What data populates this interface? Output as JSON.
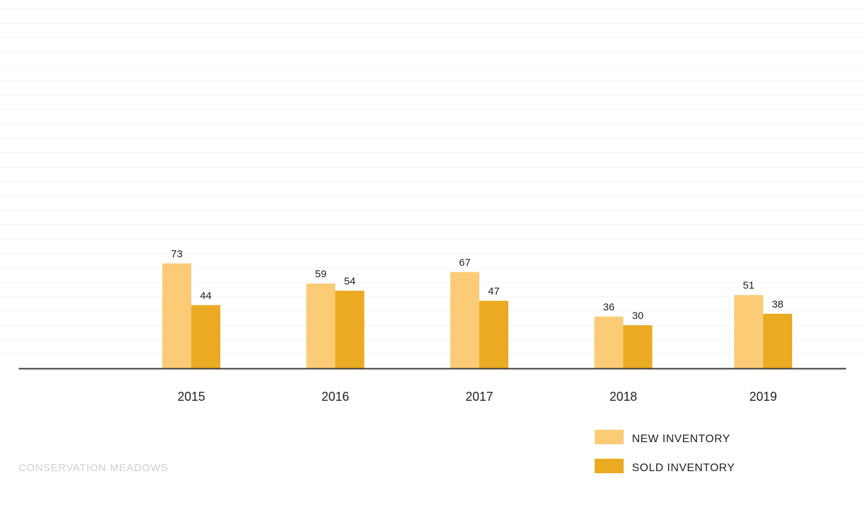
{
  "footer": {
    "label": "CONSERVATION MEADOWS"
  },
  "colors": {
    "new_inventory": "#fccb76",
    "sold_inventory": "#eaab22",
    "axis": "#3a3a3a",
    "grid": "#f4f4f4"
  },
  "chart_data": {
    "type": "bar",
    "categories": [
      "2015",
      "2016",
      "2017",
      "2018",
      "2019"
    ],
    "series": [
      {
        "name": "NEW INVENTORY",
        "values": [
          73,
          59,
          67,
          36,
          51
        ]
      },
      {
        "name": "SOLD INVENTORY",
        "values": [
          44,
          54,
          47,
          30,
          38
        ]
      }
    ],
    "title": "",
    "xlabel": "",
    "ylabel": "",
    "ylim": [
      0,
      250
    ],
    "grid": true,
    "legend_position": "bottom-right"
  }
}
